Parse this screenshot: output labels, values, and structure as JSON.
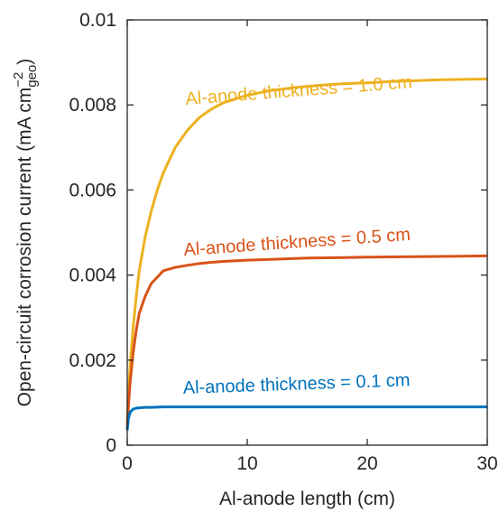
{
  "chart_data": {
    "type": "line",
    "title": "",
    "xlabel": "Al-anode length (cm)",
    "ylabel": {
      "main": "Open-circuit corrosion current (mA cm",
      "superscript": "−2",
      "subscript": "geo",
      "close": ")"
    },
    "xlim": [
      0,
      30
    ],
    "ylim": [
      0,
      0.01
    ],
    "xticks": [
      0,
      10,
      20,
      30
    ],
    "xtick_labels": [
      "0",
      "10",
      "20",
      "30"
    ],
    "yticks": [
      0,
      0.002,
      0.004,
      0.006,
      0.008,
      0.01
    ],
    "ytick_labels": [
      "0",
      "0.002",
      "0.004",
      "0.006",
      "0.008",
      "0.01"
    ],
    "grid": false,
    "legend": "none",
    "series": [
      {
        "label": "Al-anode thickness = 1.0 cm",
        "color": "#EDB120",
        "x": [
          0,
          0.1,
          0.25,
          0.5,
          0.75,
          1,
          1.5,
          2,
          2.5,
          3,
          4,
          5,
          6,
          7,
          8,
          10,
          12,
          14,
          16,
          18,
          20,
          22,
          24,
          26,
          28,
          30
        ],
        "y": [
          0.0005,
          0.0012,
          0.0019,
          0.0028,
          0.0035,
          0.0041,
          0.0049,
          0.0055,
          0.006,
          0.0064,
          0.007,
          0.0074,
          0.0077,
          0.0079,
          0.00805,
          0.00823,
          0.00834,
          0.00841,
          0.00846,
          0.0085,
          0.00852,
          0.00855,
          0.00857,
          0.00859,
          0.0086,
          0.00861
        ]
      },
      {
        "label": "Al-anode thickness = 0.5 cm",
        "color": "#D95319",
        "x": [
          0,
          0.1,
          0.25,
          0.5,
          0.75,
          1,
          1.5,
          2,
          2.5,
          3,
          4,
          5,
          6,
          7,
          8,
          10,
          12,
          15,
          18,
          20,
          24,
          30
        ],
        "y": [
          0.0004,
          0.0009,
          0.0015,
          0.0022,
          0.0027,
          0.0031,
          0.0035,
          0.0038,
          0.00395,
          0.0041,
          0.00418,
          0.00423,
          0.00427,
          0.0043,
          0.00432,
          0.00435,
          0.00437,
          0.0044,
          0.00441,
          0.00442,
          0.00443,
          0.00445
        ]
      },
      {
        "label": "Al-anode thickness = 0.1 cm",
        "color": "#0072BD",
        "x": [
          0,
          0.1,
          0.25,
          0.5,
          0.75,
          1,
          1.5,
          2,
          3,
          5,
          10,
          20,
          30
        ],
        "y": [
          0.00035,
          0.00062,
          0.00078,
          0.00085,
          0.00087,
          0.00088,
          0.00089,
          0.00089,
          0.0009,
          0.0009,
          0.0009,
          0.0009,
          0.0009
        ]
      }
    ]
  }
}
